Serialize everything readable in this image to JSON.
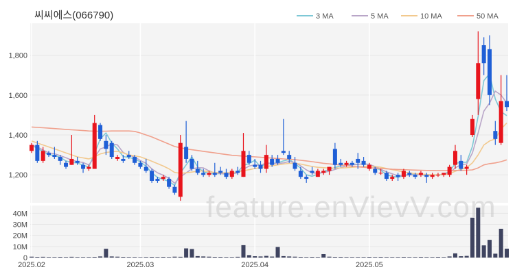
{
  "chart_data": {
    "type": "candlestick",
    "title": "씨씨에스(066790)",
    "watermark": "feature.enVievV.com",
    "legend": [
      {
        "label": "3 MA",
        "color": "#7ec8d6"
      },
      {
        "label": "5 MA",
        "color": "#b9a6c8"
      },
      {
        "label": "10 MA",
        "color": "#f2c98e"
      },
      {
        "label": "50 MA",
        "color": "#f0a08c"
      }
    ],
    "colors": {
      "up": "#e8141c",
      "down": "#1f5fd6",
      "volume": "#3f4460",
      "grid": "#e6e6e6",
      "plot_bg": "#f4f4f4"
    },
    "price_axis": {
      "ticks": [
        1200,
        1400,
        1600,
        1800
      ],
      "labels": [
        "1,200",
        "1,400",
        "1,600",
        "1,800"
      ],
      "range": [
        1060,
        1960
      ]
    },
    "volume_axis": {
      "ticks": [
        0,
        10,
        20,
        30,
        40
      ],
      "labels": [
        "0",
        "10M",
        "20M",
        "30M",
        "40M"
      ],
      "range": [
        0,
        47
      ]
    },
    "x_labels": [
      {
        "label": "2025.02",
        "index": 0
      },
      {
        "label": "2025.03",
        "index": 19
      },
      {
        "label": "2025.04",
        "index": 39
      },
      {
        "label": "2025.05",
        "index": 59
      }
    ],
    "candles": [
      {
        "o": 1320,
        "h": 1360,
        "l": 1310,
        "c": 1350
      },
      {
        "o": 1350,
        "h": 1370,
        "l": 1260,
        "c": 1270
      },
      {
        "o": 1270,
        "h": 1340,
        "l": 1260,
        "c": 1320
      },
      {
        "o": 1310,
        "h": 1320,
        "l": 1290,
        "c": 1300
      },
      {
        "o": 1300,
        "h": 1340,
        "l": 1280,
        "c": 1290
      },
      {
        "o": 1290,
        "h": 1300,
        "l": 1250,
        "c": 1270
      },
      {
        "o": 1260,
        "h": 1270,
        "l": 1230,
        "c": 1240
      },
      {
        "o": 1250,
        "h": 1400,
        "l": 1250,
        "c": 1280
      },
      {
        "o": 1270,
        "h": 1290,
        "l": 1250,
        "c": 1260
      },
      {
        "o": 1250,
        "h": 1260,
        "l": 1210,
        "c": 1230
      },
      {
        "o": 1230,
        "h": 1250,
        "l": 1220,
        "c": 1240
      },
      {
        "o": 1230,
        "h": 1500,
        "l": 1230,
        "c": 1460
      },
      {
        "o": 1450,
        "h": 1460,
        "l": 1370,
        "c": 1380
      },
      {
        "o": 1370,
        "h": 1400,
        "l": 1300,
        "c": 1330
      },
      {
        "o": 1360,
        "h": 1370,
        "l": 1280,
        "c": 1290
      },
      {
        "o": 1280,
        "h": 1300,
        "l": 1270,
        "c": 1290
      },
      {
        "o": 1280,
        "h": 1300,
        "l": 1260,
        "c": 1270
      },
      {
        "o": 1300,
        "h": 1320,
        "l": 1280,
        "c": 1290
      },
      {
        "o": 1290,
        "h": 1300,
        "l": 1250,
        "c": 1260
      },
      {
        "o": 1260,
        "h": 1270,
        "l": 1230,
        "c": 1240
      },
      {
        "o": 1240,
        "h": 1280,
        "l": 1210,
        "c": 1220
      },
      {
        "o": 1220,
        "h": 1230,
        "l": 1160,
        "c": 1170
      },
      {
        "o": 1180,
        "h": 1190,
        "l": 1160,
        "c": 1170
      },
      {
        "o": 1180,
        "h": 1200,
        "l": 1170,
        "c": 1190
      },
      {
        "o": 1180,
        "h": 1190,
        "l": 1130,
        "c": 1140
      },
      {
        "o": 1140,
        "h": 1150,
        "l": 1100,
        "c": 1110
      },
      {
        "o": 1090,
        "h": 1400,
        "l": 1070,
        "c": 1360
      },
      {
        "o": 1340,
        "h": 1470,
        "l": 1260,
        "c": 1280
      },
      {
        "o": 1280,
        "h": 1300,
        "l": 1220,
        "c": 1230
      },
      {
        "o": 1230,
        "h": 1270,
        "l": 1200,
        "c": 1210
      },
      {
        "o": 1210,
        "h": 1230,
        "l": 1190,
        "c": 1200
      },
      {
        "o": 1200,
        "h": 1220,
        "l": 1190,
        "c": 1210
      },
      {
        "o": 1210,
        "h": 1260,
        "l": 1190,
        "c": 1200
      },
      {
        "o": 1220,
        "h": 1240,
        "l": 1200,
        "c": 1210
      },
      {
        "o": 1210,
        "h": 1230,
        "l": 1180,
        "c": 1190
      },
      {
        "o": 1190,
        "h": 1230,
        "l": 1180,
        "c": 1220
      },
      {
        "o": 1220,
        "h": 1240,
        "l": 1200,
        "c": 1210
      },
      {
        "o": 1190,
        "h": 1410,
        "l": 1190,
        "c": 1320
      },
      {
        "o": 1300,
        "h": 1320,
        "l": 1250,
        "c": 1260
      },
      {
        "o": 1250,
        "h": 1280,
        "l": 1230,
        "c": 1240
      },
      {
        "o": 1250,
        "h": 1270,
        "l": 1210,
        "c": 1230
      },
      {
        "o": 1230,
        "h": 1350,
        "l": 1210,
        "c": 1300
      },
      {
        "o": 1280,
        "h": 1300,
        "l": 1240,
        "c": 1250
      },
      {
        "o": 1280,
        "h": 1300,
        "l": 1250,
        "c": 1260
      },
      {
        "o": 1320,
        "h": 1480,
        "l": 1300,
        "c": 1310
      },
      {
        "o": 1300,
        "h": 1320,
        "l": 1260,
        "c": 1280
      },
      {
        "o": 1260,
        "h": 1290,
        "l": 1220,
        "c": 1230
      },
      {
        "o": 1220,
        "h": 1240,
        "l": 1180,
        "c": 1190
      },
      {
        "o": 1190,
        "h": 1200,
        "l": 1160,
        "c": 1180
      },
      {
        "o": 1220,
        "h": 1240,
        "l": 1200,
        "c": 1210
      },
      {
        "o": 1190,
        "h": 1230,
        "l": 1190,
        "c": 1220
      },
      {
        "o": 1210,
        "h": 1230,
        "l": 1200,
        "c": 1220
      },
      {
        "o": 1220,
        "h": 1240,
        "l": 1200,
        "c": 1240
      },
      {
        "o": 1330,
        "h": 1360,
        "l": 1230,
        "c": 1250
      },
      {
        "o": 1260,
        "h": 1280,
        "l": 1240,
        "c": 1250
      },
      {
        "o": 1250,
        "h": 1270,
        "l": 1240,
        "c": 1260
      },
      {
        "o": 1260,
        "h": 1270,
        "l": 1240,
        "c": 1250
      },
      {
        "o": 1280,
        "h": 1310,
        "l": 1230,
        "c": 1260
      },
      {
        "o": 1270,
        "h": 1290,
        "l": 1240,
        "c": 1250
      },
      {
        "o": 1230,
        "h": 1260,
        "l": 1220,
        "c": 1250
      },
      {
        "o": 1230,
        "h": 1240,
        "l": 1200,
        "c": 1210
      },
      {
        "o": 1210,
        "h": 1230,
        "l": 1200,
        "c": 1210
      },
      {
        "o": 1210,
        "h": 1220,
        "l": 1170,
        "c": 1180
      },
      {
        "o": 1180,
        "h": 1200,
        "l": 1170,
        "c": 1190
      },
      {
        "o": 1200,
        "h": 1210,
        "l": 1170,
        "c": 1190
      },
      {
        "o": 1190,
        "h": 1230,
        "l": 1180,
        "c": 1220
      },
      {
        "o": 1210,
        "h": 1220,
        "l": 1190,
        "c": 1200
      },
      {
        "o": 1200,
        "h": 1210,
        "l": 1180,
        "c": 1190
      },
      {
        "o": 1200,
        "h": 1220,
        "l": 1190,
        "c": 1210
      },
      {
        "o": 1200,
        "h": 1210,
        "l": 1160,
        "c": 1190
      },
      {
        "o": 1190,
        "h": 1210,
        "l": 1180,
        "c": 1200
      },
      {
        "o": 1200,
        "h": 1210,
        "l": 1190,
        "c": 1200
      },
      {
        "o": 1200,
        "h": 1210,
        "l": 1190,
        "c": 1210
      },
      {
        "o": 1200,
        "h": 1250,
        "l": 1190,
        "c": 1240
      },
      {
        "o": 1250,
        "h": 1350,
        "l": 1230,
        "c": 1320
      },
      {
        "o": 1270,
        "h": 1300,
        "l": 1220,
        "c": 1230
      },
      {
        "o": 1230,
        "h": 1250,
        "l": 1200,
        "c": 1240
      },
      {
        "o": 1400,
        "h": 1500,
        "l": 1390,
        "c": 1480
      },
      {
        "o": 1580,
        "h": 1920,
        "l": 1500,
        "c": 1760
      },
      {
        "o": 1850,
        "h": 1890,
        "l": 1700,
        "c": 1760
      },
      {
        "o": 1830,
        "h": 1900,
        "l": 1550,
        "c": 1600
      },
      {
        "o": 1420,
        "h": 1470,
        "l": 1350,
        "c": 1380
      },
      {
        "o": 1360,
        "h": 1700,
        "l": 1350,
        "c": 1570
      },
      {
        "o": 1570,
        "h": 1700,
        "l": 1520,
        "c": 1540
      }
    ],
    "volume": [
      0.8,
      0.6,
      0.7,
      0.5,
      0.5,
      0.6,
      0.5,
      0.7,
      0.5,
      0.5,
      0.5,
      0.6,
      1.0,
      7.9,
      1.0,
      0.8,
      0.6,
      0.5,
      0.5,
      0.4,
      0.5,
      0.6,
      0.5,
      0.6,
      0.5,
      0.8,
      0.7,
      8.3,
      7.7,
      1.3,
      1.0,
      0.8,
      0.6,
      0.6,
      0.5,
      0.5,
      0.7,
      11.2,
      2.2,
      1.2,
      1.0,
      1.5,
      0.9,
      9.5,
      1.3,
      1.0,
      0.8,
      0.6,
      0.5,
      0.6,
      0.5,
      3.1,
      0.8,
      0.6,
      0.6,
      0.5,
      0.5,
      0.5,
      0.5,
      0.6,
      0.5,
      0.6,
      0.5,
      0.5,
      0.5,
      0.6,
      0.5,
      0.5,
      0.6,
      0.5,
      0.5,
      0.6,
      0.5,
      1.0,
      3.8,
      1.2,
      1.5,
      36.0,
      45.0,
      11.0,
      16.0,
      3.5,
      26.0,
      8.0
    ],
    "ma3": [
      1350,
      1332,
      1318,
      1300,
      1298,
      1288,
      1270,
      1262,
      1260,
      1248,
      1240,
      1308,
      1380,
      1410,
      1360,
      1330,
      1292,
      1287,
      1280,
      1265,
      1243,
      1210,
      1187,
      1177,
      1167,
      1147,
      1210,
      1250,
      1290,
      1240,
      1215,
      1207,
      1205,
      1207,
      1203,
      1207,
      1213,
      1248,
      1257,
      1273,
      1240,
      1257,
      1257,
      1260,
      1270,
      1277,
      1257,
      1233,
      1200,
      1193,
      1203,
      1217,
      1227,
      1237,
      1245,
      1252,
      1253,
      1253,
      1255,
      1252,
      1237,
      1223,
      1200,
      1193,
      1187,
      1197,
      1203,
      1203,
      1200,
      1197,
      1200,
      1200,
      1203,
      1217,
      1257,
      1263,
      1263,
      1343,
      1493,
      1673,
      1707,
      1580,
      1517,
      1497
    ],
    "ma5": [
      1350,
      1340,
      1325,
      1310,
      1306,
      1296,
      1286,
      1274,
      1266,
      1262,
      1250,
      1288,
      1330,
      1340,
      1355,
      1350,
      1312,
      1298,
      1290,
      1272,
      1258,
      1230,
      1210,
      1198,
      1182,
      1158,
      1190,
      1210,
      1230,
      1236,
      1235,
      1220,
      1208,
      1207,
      1204,
      1205,
      1210,
      1228,
      1244,
      1250,
      1248,
      1260,
      1258,
      1257,
      1260,
      1267,
      1262,
      1245,
      1225,
      1210,
      1208,
      1212,
      1218,
      1227,
      1236,
      1245,
      1250,
      1252,
      1255,
      1252,
      1242,
      1228,
      1215,
      1205,
      1195,
      1197,
      1199,
      1200,
      1201,
      1198,
      1198,
      1199,
      1201,
      1210,
      1235,
      1251,
      1254,
      1310,
      1410,
      1520,
      1560,
      1620,
      1600,
      1560
    ],
    "ma10": [
      1370,
      1360,
      1350,
      1340,
      1330,
      1320,
      1310,
      1300,
      1290,
      1285,
      1280,
      1290,
      1305,
      1312,
      1316,
      1318,
      1310,
      1300,
      1295,
      1290,
      1280,
      1268,
      1256,
      1244,
      1230,
      1212,
      1208,
      1210,
      1214,
      1218,
      1220,
      1216,
      1212,
      1210,
      1210,
      1212,
      1215,
      1220,
      1226,
      1232,
      1236,
      1242,
      1246,
      1250,
      1254,
      1258,
      1258,
      1254,
      1248,
      1242,
      1238,
      1236,
      1234,
      1234,
      1234,
      1236,
      1238,
      1240,
      1242,
      1244,
      1242,
      1238,
      1232,
      1226,
      1220,
      1214,
      1210,
      1206,
      1204,
      1202,
      1200,
      1200,
      1201,
      1206,
      1218,
      1228,
      1236,
      1260,
      1300,
      1350,
      1370,
      1380,
      1430,
      1460
    ],
    "ma50": [
      1440,
      1438,
      1436,
      1434,
      1432,
      1430,
      1428,
      1426,
      1424,
      1422,
      1420,
      1419,
      1419,
      1419,
      1420,
      1420,
      1420,
      1420,
      1418,
      1410,
      1400,
      1390,
      1378,
      1366,
      1354,
      1342,
      1336,
      1330,
      1326,
      1322,
      1318,
      1314,
      1310,
      1306,
      1302,
      1298,
      1296,
      1294,
      1292,
      1290,
      1288,
      1286,
      1284,
      1282,
      1280,
      1278,
      1276,
      1273,
      1270,
      1266,
      1262,
      1258,
      1255,
      1252,
      1249,
      1246,
      1243,
      1240,
      1238,
      1236,
      1234,
      1232,
      1230,
      1228,
      1227,
      1226,
      1225,
      1224,
      1223,
      1222,
      1222,
      1221,
      1221,
      1221,
      1222,
      1222,
      1223,
      1225,
      1235,
      1250,
      1256,
      1260,
      1266,
      1275
    ]
  }
}
